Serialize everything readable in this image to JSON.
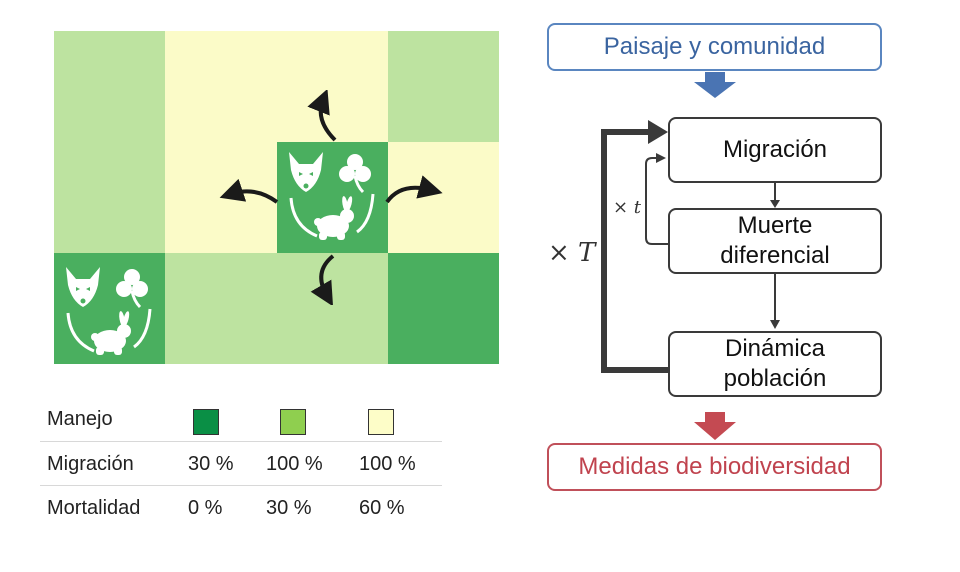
{
  "colors": {
    "dark_green": "#4aaf5f",
    "mid_green": "#bde3a0",
    "light_yellow": "#fbfbc8",
    "legend_dark": "#0a8f45",
    "legend_mid": "#8fcf4f",
    "legend_light": "#fdfdc8",
    "blue": "#4a74b3",
    "red": "#c44a52",
    "arrow": "#2a2a2a"
  },
  "landscape": {
    "rows": [
      [
        "mid",
        "light",
        "light",
        "mid"
      ],
      [
        "mid",
        "light",
        "dark",
        "light"
      ],
      [
        "dark",
        "mid",
        "mid",
        "dark"
      ]
    ],
    "community_icons": [
      "fox-icon",
      "clover-icon",
      "rabbit-icon"
    ]
  },
  "legend": {
    "rows": [
      {
        "label": "Manejo",
        "values": []
      },
      {
        "label": "Migración",
        "values": [
          "30 %",
          "100 %",
          "100 %"
        ]
      },
      {
        "label": "Mortalidad",
        "values": [
          "0 %",
          "30 %",
          "60 %"
        ]
      }
    ]
  },
  "flow": {
    "input": "Paisaje y comunidad",
    "step1": "Migración",
    "step2_line1": "Muerte",
    "step2_line2": "diferencial",
    "step3_line1": "Dinámica",
    "step3_line2": "población",
    "output": "Medidas de biodiversidad",
    "outer_loop": "× T",
    "inner_loop": "× t"
  }
}
